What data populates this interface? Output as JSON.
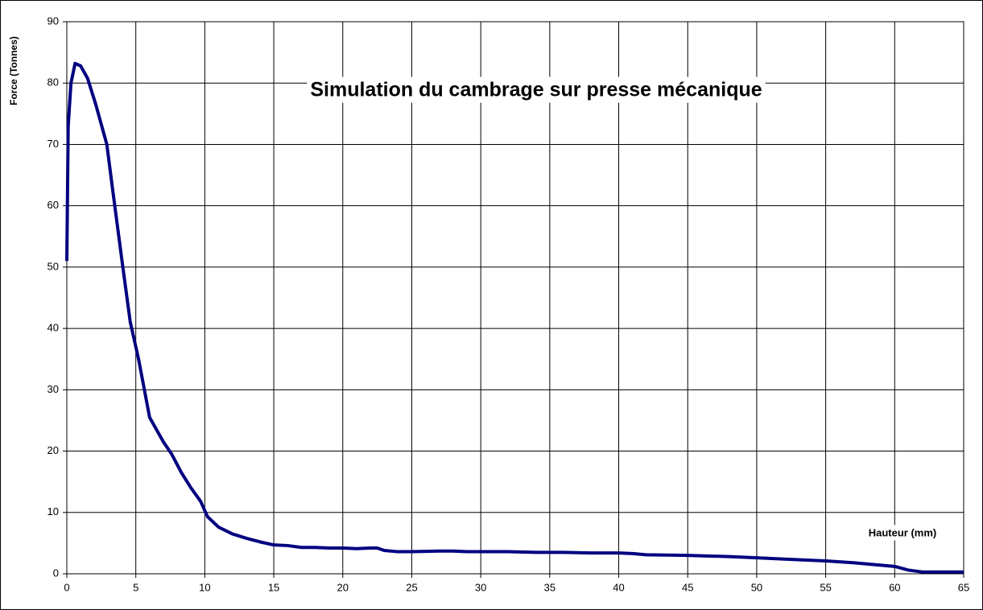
{
  "chart_data": {
    "type": "line",
    "title": "Simulation du cambrage sur presse mécanique",
    "x_label": "Hauteur (mm)",
    "y_label": "Force (Tonnes)",
    "xlim": [
      0,
      65
    ],
    "xticks": [
      0,
      5,
      10,
      15,
      20,
      25,
      30,
      35,
      40,
      45,
      50,
      55,
      60,
      65
    ],
    "ylim": [
      0,
      90
    ],
    "yticks": [
      0,
      10,
      20,
      30,
      40,
      50,
      60,
      70,
      80,
      90
    ],
    "grid": true,
    "series": [
      {
        "color": "#000080",
        "x": [
          0,
          0.1,
          0.3,
          0.6,
          1,
          1.5,
          2.1,
          2.9,
          3.3,
          4,
          4.6,
          5.2,
          6,
          7,
          7.6,
          8.3,
          9,
          9.7,
          10.2,
          11,
          12,
          13,
          14,
          15,
          16,
          17,
          18,
          19,
          20,
          21,
          22,
          22.5,
          23,
          24,
          25,
          27,
          28,
          29,
          30,
          32,
          34,
          36,
          38,
          40,
          41,
          42,
          45,
          48,
          50,
          52,
          55,
          57,
          60,
          61,
          62,
          65
        ],
        "values": [
          51,
          73,
          80,
          83.2,
          82.8,
          80.8,
          76.5,
          70,
          63,
          51,
          41,
          35,
          25.5,
          21.5,
          19.5,
          16.5,
          14,
          11.8,
          9.3,
          7.6,
          6.5,
          5.8,
          5.2,
          4.7,
          4.6,
          4.3,
          4.3,
          4.2,
          4.2,
          4.1,
          4.2,
          4.2,
          3.8,
          3.6,
          3.6,
          3.7,
          3.7,
          3.6,
          3.6,
          3.6,
          3.5,
          3.5,
          3.4,
          3.4,
          3.3,
          3.1,
          3,
          2.8,
          2.6,
          2.4,
          2.1,
          1.8,
          1.2,
          0.6,
          0.3,
          0.3
        ]
      }
    ]
  }
}
